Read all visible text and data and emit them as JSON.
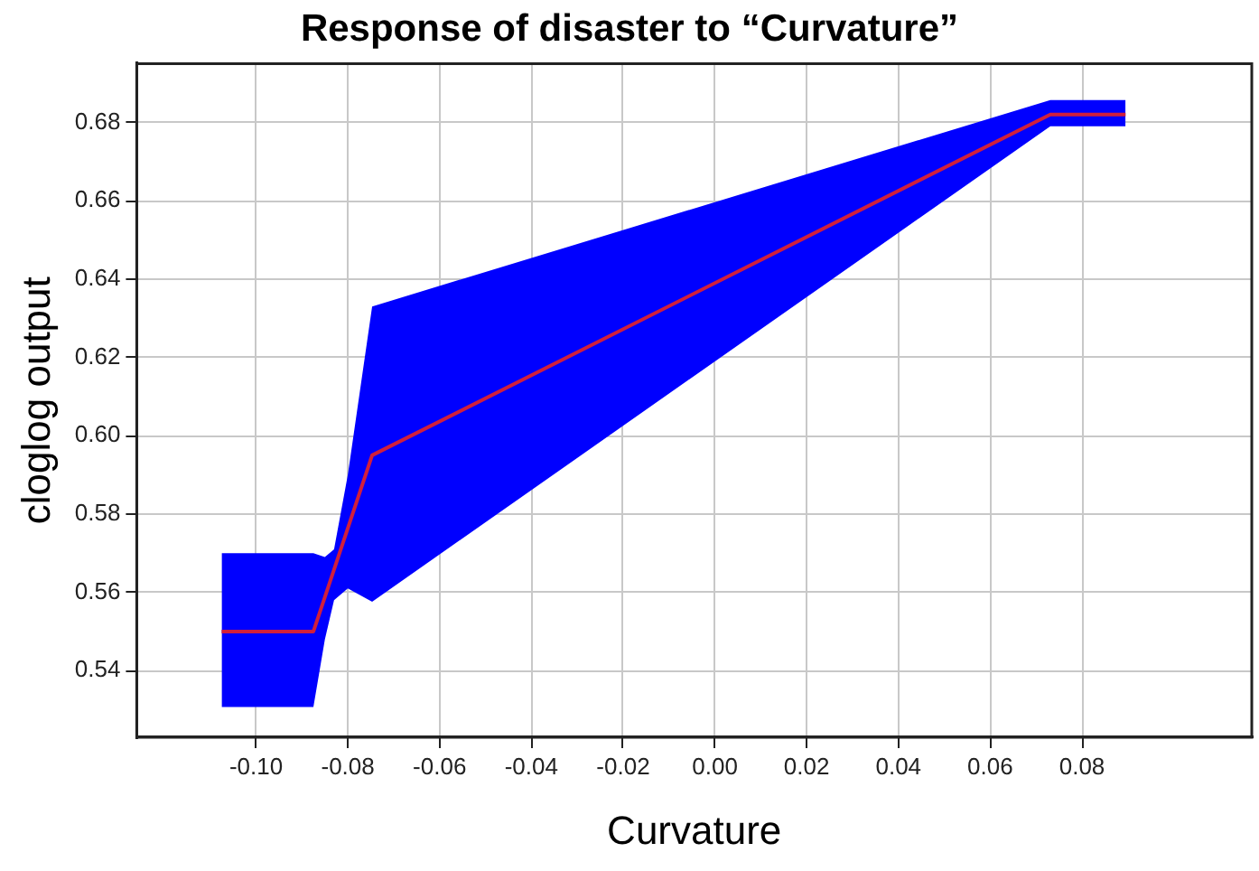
{
  "chart_data": {
    "type": "line",
    "title": "Response of disaster to “Curvature”",
    "xlabel": "Curvature",
    "ylabel": "cloglog output",
    "xlim": [
      -0.126,
      0.117
    ],
    "ylim": [
      0.523,
      0.695
    ],
    "xticks": [
      {
        "value": -0.1,
        "label": "-0.10"
      },
      {
        "value": -0.08,
        "label": "-0.08"
      },
      {
        "value": -0.06,
        "label": "-0.06"
      },
      {
        "value": -0.04,
        "label": "-0.04"
      },
      {
        "value": -0.02,
        "label": "-0.02"
      },
      {
        "value": 0,
        "label": "0.00"
      },
      {
        "value": 0.02,
        "label": "0.02"
      },
      {
        "value": 0.04,
        "label": "0.04"
      },
      {
        "value": 0.06,
        "label": "0.06"
      },
      {
        "value": 0.08,
        "label": "0.08"
      }
    ],
    "yticks": [
      {
        "value": 0.54,
        "label": "0.54"
      },
      {
        "value": 0.56,
        "label": "0.56"
      },
      {
        "value": 0.58,
        "label": "0.58"
      },
      {
        "value": 0.6,
        "label": "0.60"
      },
      {
        "value": 0.62,
        "label": "0.62"
      },
      {
        "value": 0.64,
        "label": "0.64"
      },
      {
        "value": 0.66,
        "label": "0.66"
      },
      {
        "value": 0.68,
        "label": "0.68"
      }
    ],
    "grid": true,
    "legend": false,
    "series": [
      {
        "color": "#d11f3c",
        "x": [
          -0.1075,
          -0.0875,
          -0.085,
          -0.083,
          -0.08,
          -0.0747,
          0.0731,
          0.0895
        ],
        "values": [
          0.55,
          0.55,
          0.5588,
          0.5658,
          0.5764,
          0.595,
          0.682,
          0.682
        ],
        "lower": [
          0.5307,
          0.5307,
          0.548,
          0.558,
          0.561,
          0.5576,
          0.679,
          0.679
        ],
        "upper": [
          0.57,
          0.57,
          0.569,
          0.571,
          0.59,
          0.633,
          0.6857,
          0.6857
        ]
      }
    ]
  }
}
